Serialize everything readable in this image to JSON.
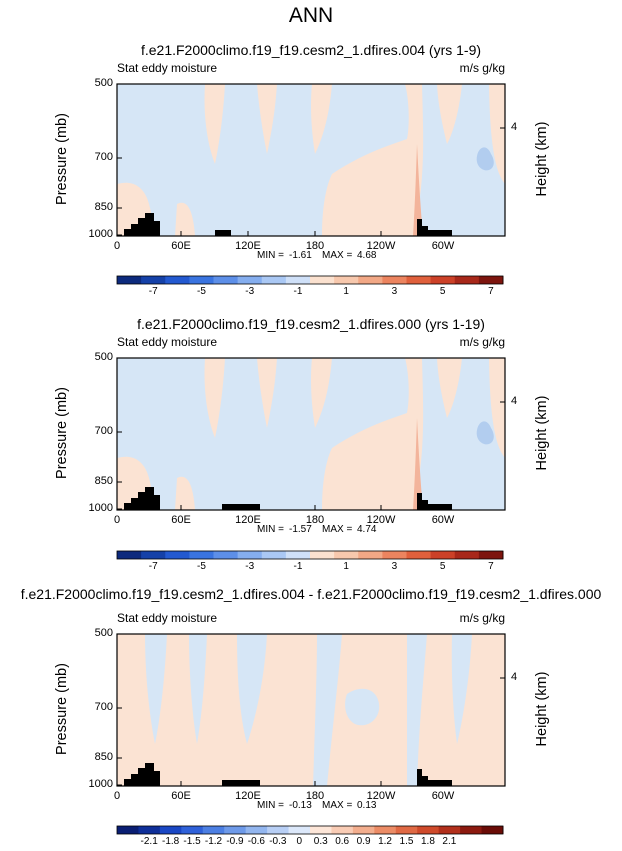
{
  "header": {
    "title": "ANN"
  },
  "panels": [
    {
      "title": "f.e21.F2000climo.f19_f19.cesm2_1.dfires.004 (yrs 1-9)",
      "left_string": "Stat eddy moisture",
      "right_string": "m/s g/kg",
      "ylabel": "Pressure (mb)",
      "ylabel_right": "Height (km)",
      "yticks": [
        "500",
        "700",
        "850",
        "1000"
      ],
      "yticks_right": [
        "4"
      ],
      "xticks": [
        "0",
        "60E",
        "120E",
        "180",
        "120W",
        "60W"
      ],
      "min_label": "MIN =",
      "min_value": "-1.61",
      "max_label": "MAX =",
      "max_value": "4.68",
      "colorbar_labels": [
        "-7",
        "-5",
        "-3",
        "-1",
        "1",
        "3",
        "5",
        "7"
      ]
    },
    {
      "title": "f.e21.F2000climo.f19_f19.cesm2_1.dfires.000 (yrs 1-19)",
      "left_string": "Stat eddy moisture",
      "right_string": "m/s g/kg",
      "ylabel": "Pressure (mb)",
      "ylabel_right": "Height (km)",
      "yticks": [
        "500",
        "700",
        "850",
        "1000"
      ],
      "yticks_right": [
        "4"
      ],
      "xticks": [
        "0",
        "60E",
        "120E",
        "180",
        "120W",
        "60W"
      ],
      "min_label": "MIN =",
      "min_value": "-1.57",
      "max_label": "MAX =",
      "max_value": "4.74",
      "colorbar_labels": [
        "-7",
        "-5",
        "-3",
        "-1",
        "1",
        "3",
        "5",
        "7"
      ]
    },
    {
      "title": "f.e21.F2000climo.f19_f19.cesm2_1.dfires.004 - f.e21.F2000climo.f19_f19.cesm2_1.dfires.000",
      "left_string": "Stat eddy moisture",
      "right_string": "m/s g/kg",
      "ylabel": "Pressure (mb)",
      "ylabel_right": "Height (km)",
      "yticks": [
        "500",
        "700",
        "850",
        "1000"
      ],
      "yticks_right": [
        "4"
      ],
      "xticks": [
        "0",
        "60E",
        "120E",
        "180",
        "120W",
        "60W"
      ],
      "min_label": "MIN =",
      "min_value": "-0.13",
      "max_label": "MAX =",
      "max_value": "0.13",
      "colorbar_labels": [
        "-2.1",
        "-1.8",
        "-1.5",
        "-1.2",
        "-0.9",
        "-0.6",
        "-0.3",
        "0",
        "0.3",
        "0.6",
        "0.9",
        "1.2",
        "1.5",
        "1.8",
        "2.1"
      ]
    }
  ],
  "colors": {
    "positive_light": "#fbe3d3",
    "negative_light": "#d6e6f6",
    "negative_mid": "#b2cdef",
    "positive_mid": "#f3b49b",
    "land": "#000000"
  },
  "chart_data": [
    {
      "type": "heatmap",
      "title": "f.e21.F2000climo.f19_f19.cesm2_1.dfires.004 (yrs 1-9)",
      "xlabel": "",
      "ylabel": "Pressure (mb)",
      "x_ticks": [
        "0",
        "60E",
        "120E",
        "180",
        "120W",
        "60W"
      ],
      "y_ticks": [
        500,
        700,
        850,
        1000
      ],
      "ylim": [
        1000,
        500
      ],
      "value_range": {
        "min": -1.61,
        "max": 4.68
      },
      "colorbar_levels": [
        -8,
        -7,
        -6,
        -5,
        -4,
        -3,
        -2,
        -1,
        0,
        1,
        2,
        3,
        4,
        5,
        6,
        7,
        8
      ],
      "colorbar_labels": [
        "-7",
        "-5",
        "-3",
        "-1",
        "1",
        "3",
        "5",
        "7"
      ]
    },
    {
      "type": "heatmap",
      "title": "f.e21.F2000climo.f19_f19.cesm2_1.dfires.000 (yrs 1-19)",
      "xlabel": "",
      "ylabel": "Pressure (mb)",
      "x_ticks": [
        "0",
        "60E",
        "120E",
        "180",
        "120W",
        "60W"
      ],
      "y_ticks": [
        500,
        700,
        850,
        1000
      ],
      "ylim": [
        1000,
        500
      ],
      "value_range": {
        "min": -1.57,
        "max": 4.74
      },
      "colorbar_levels": [
        -8,
        -7,
        -6,
        -5,
        -4,
        -3,
        -2,
        -1,
        0,
        1,
        2,
        3,
        4,
        5,
        6,
        7,
        8
      ],
      "colorbar_labels": [
        "-7",
        "-5",
        "-3",
        "-1",
        "1",
        "3",
        "5",
        "7"
      ]
    },
    {
      "type": "heatmap",
      "title": "f.e21.F2000climo.f19_f19.cesm2_1.dfires.004 - f.e21.F2000climo.f19_f19.cesm2_1.dfires.000",
      "xlabel": "",
      "ylabel": "Pressure (mb)",
      "x_ticks": [
        "0",
        "60E",
        "120E",
        "180",
        "120W",
        "60W"
      ],
      "y_ticks": [
        500,
        700,
        850,
        1000
      ],
      "ylim": [
        1000,
        500
      ],
      "value_range": {
        "min": -0.13,
        "max": 0.13
      },
      "colorbar_levels": [
        -2.4,
        -2.1,
        -1.8,
        -1.5,
        -1.2,
        -0.9,
        -0.6,
        -0.3,
        0,
        0.3,
        0.6,
        0.9,
        1.2,
        1.5,
        1.8,
        2.1,
        2.4
      ],
      "colorbar_labels": [
        "-2.1",
        "-1.8",
        "-1.5",
        "-1.2",
        "-0.9",
        "-0.6",
        "-0.3",
        "0",
        "0.3",
        "0.6",
        "0.9",
        "1.2",
        "1.5",
        "1.8",
        "2.1"
      ]
    }
  ]
}
